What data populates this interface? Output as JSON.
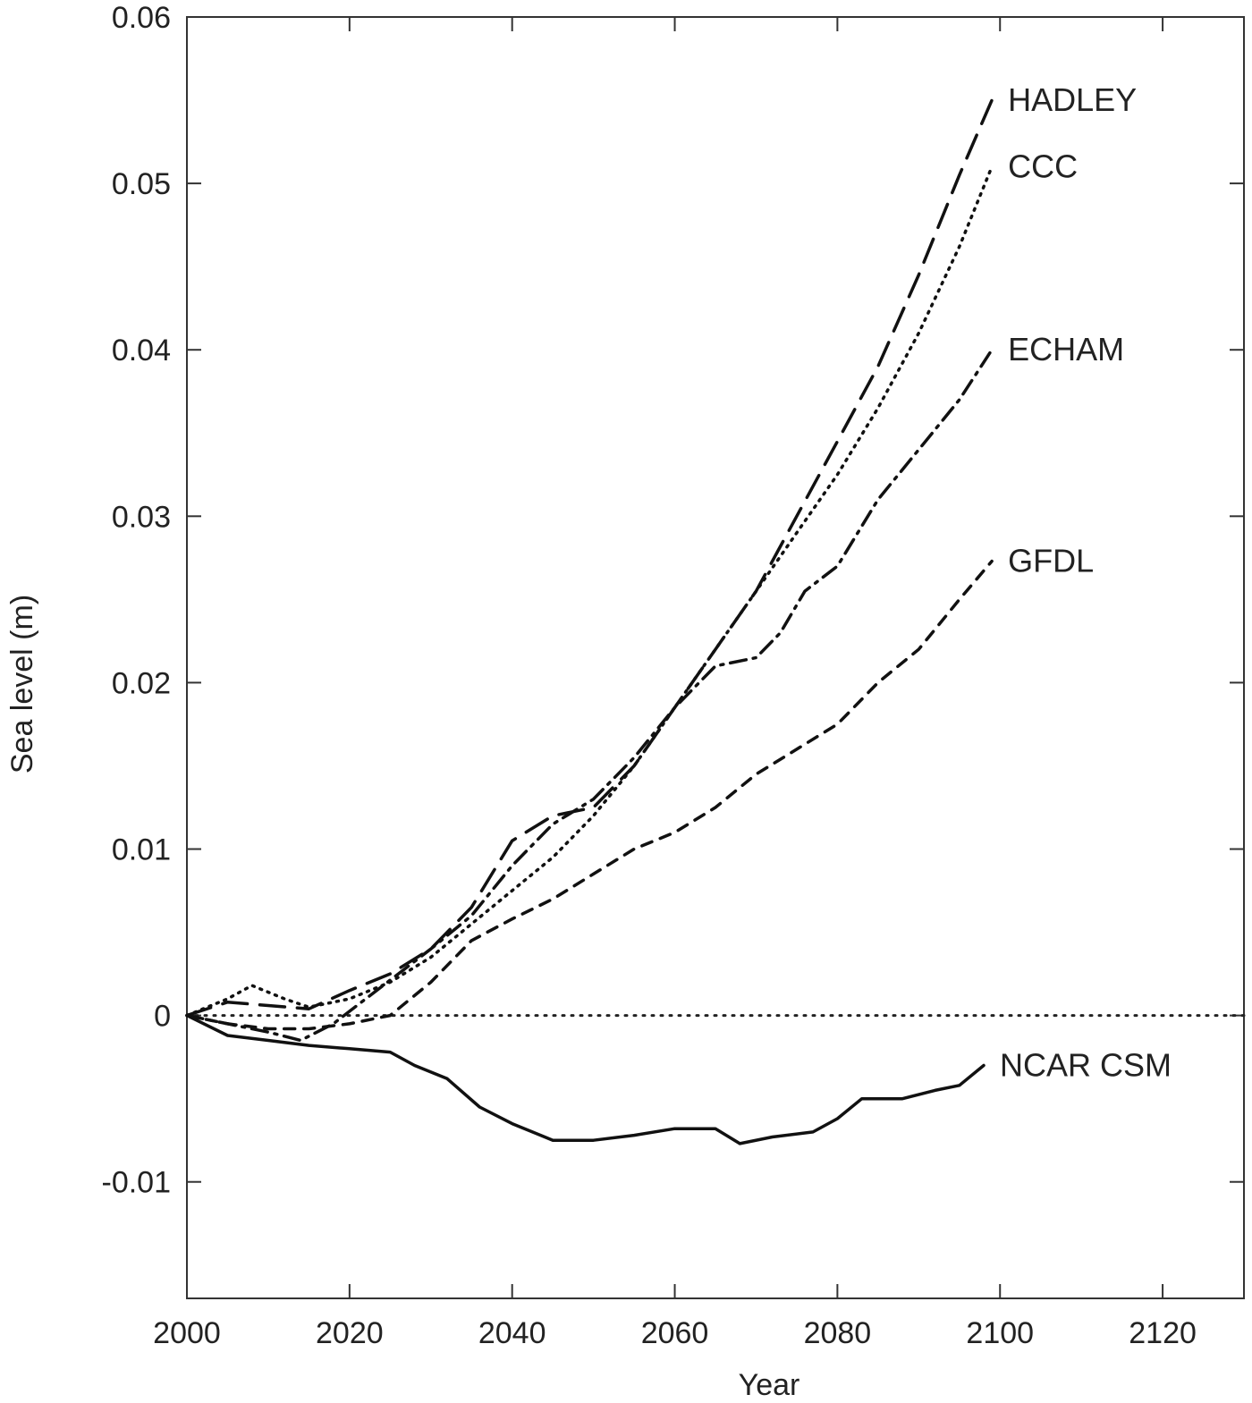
{
  "chart_data": {
    "type": "line",
    "title": "",
    "xlabel": "Year",
    "ylabel": "Sea level (m)",
    "xlim": [
      2000,
      2130
    ],
    "ylim": [
      -0.017,
      0.06
    ],
    "xticks": [
      2000,
      2020,
      2040,
      2060,
      2080,
      2100,
      2120
    ],
    "yticks": [
      -0.01,
      0,
      0.01,
      0.02,
      0.03,
      0.04,
      0.05,
      0.06
    ],
    "ytick_labels": [
      "-0.01",
      "0",
      "0.01",
      "0.02",
      "0.03",
      "0.04",
      "0.05",
      "0.06"
    ],
    "grid": false,
    "reference_line": {
      "y": 0,
      "style": "dotted"
    },
    "series": [
      {
        "name": "HADLEY",
        "style": "long-dash",
        "x": [
          2000,
          2005,
          2010,
          2015,
          2020,
          2025,
          2030,
          2035,
          2040,
          2045,
          2050,
          2055,
          2060,
          2065,
          2070,
          2075,
          2080,
          2085,
          2090,
          2095,
          2099
        ],
        "y": [
          0,
          0.0008,
          0.0006,
          0.0004,
          0.0015,
          0.0025,
          0.004,
          0.0065,
          0.0105,
          0.012,
          0.0125,
          0.015,
          0.0185,
          0.022,
          0.0255,
          0.03,
          0.0345,
          0.039,
          0.0445,
          0.0505,
          0.055
        ]
      },
      {
        "name": "CCC",
        "style": "dotted",
        "x": [
          2000,
          2005,
          2008,
          2012,
          2015,
          2020,
          2025,
          2030,
          2035,
          2040,
          2045,
          2050,
          2055,
          2060,
          2065,
          2070,
          2075,
          2080,
          2085,
          2090,
          2095,
          2099
        ],
        "y": [
          0,
          0.001,
          0.0018,
          0.001,
          0.0005,
          0.001,
          0.002,
          0.0035,
          0.0055,
          0.0075,
          0.0095,
          0.012,
          0.015,
          0.0185,
          0.022,
          0.0255,
          0.029,
          0.0325,
          0.0365,
          0.041,
          0.0462,
          0.051
        ]
      },
      {
        "name": "ECHAM",
        "style": "dash-dot",
        "x": [
          2000,
          2005,
          2010,
          2014,
          2018,
          2022,
          2026,
          2030,
          2035,
          2040,
          2045,
          2050,
          2055,
          2060,
          2065,
          2070,
          2073,
          2076,
          2080,
          2085,
          2090,
          2095,
          2099
        ],
        "y": [
          0,
          -0.0005,
          -0.001,
          -0.0015,
          -0.0005,
          0.001,
          0.0025,
          0.004,
          0.006,
          0.009,
          0.0115,
          0.013,
          0.0155,
          0.0185,
          0.021,
          0.0215,
          0.023,
          0.0255,
          0.027,
          0.031,
          0.034,
          0.037,
          0.04
        ]
      },
      {
        "name": "GFDL",
        "style": "dashed",
        "x": [
          2000,
          2005,
          2010,
          2015,
          2020,
          2025,
          2030,
          2035,
          2040,
          2045,
          2050,
          2055,
          2060,
          2065,
          2070,
          2075,
          2080,
          2085,
          2090,
          2095,
          2099
        ],
        "y": [
          0,
          -0.0005,
          -0.0008,
          -0.0008,
          -0.0005,
          0,
          0.002,
          0.0045,
          0.0058,
          0.007,
          0.0085,
          0.01,
          0.011,
          0.0125,
          0.0145,
          0.016,
          0.0175,
          0.02,
          0.022,
          0.025,
          0.0273
        ]
      },
      {
        "name": "NCAR CSM",
        "style": "solid",
        "x": [
          2000,
          2005,
          2010,
          2015,
          2020,
          2025,
          2028,
          2032,
          2036,
          2040,
          2045,
          2050,
          2055,
          2060,
          2065,
          2068,
          2072,
          2077,
          2080,
          2083,
          2088,
          2092,
          2095,
          2098
        ],
        "y": [
          0,
          -0.0012,
          -0.0015,
          -0.0018,
          -0.002,
          -0.0022,
          -0.003,
          -0.0038,
          -0.0055,
          -0.0065,
          -0.0075,
          -0.0075,
          -0.0072,
          -0.0068,
          -0.0068,
          -0.0077,
          -0.0073,
          -0.007,
          -0.0062,
          -0.005,
          -0.005,
          -0.0045,
          -0.0042,
          -0.003
        ]
      }
    ]
  }
}
